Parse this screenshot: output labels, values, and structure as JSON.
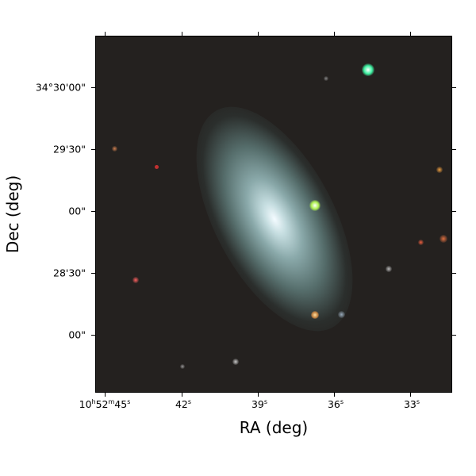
{
  "axes": {
    "xlabel": "RA (deg)",
    "ylabel": "Dec (deg)",
    "x_ticks": [
      {
        "h": "10",
        "hs": "h",
        "m": "52",
        "ms": "m",
        "s": "45",
        "ss": "s"
      },
      {
        "s": "42",
        "ss": "s"
      },
      {
        "s": "39",
        "ss": "s"
      },
      {
        "s": "36",
        "ss": "s"
      },
      {
        "s": "33",
        "ss": "s"
      }
    ],
    "y_ticks": [
      "34°30'00\"",
      "29'30\"",
      "00\"",
      "28'30\"",
      "00\""
    ]
  },
  "colors": {
    "background": "#24211f",
    "galaxy_core": "#f4fbff",
    "bright_star": "#3cf0a0"
  }
}
